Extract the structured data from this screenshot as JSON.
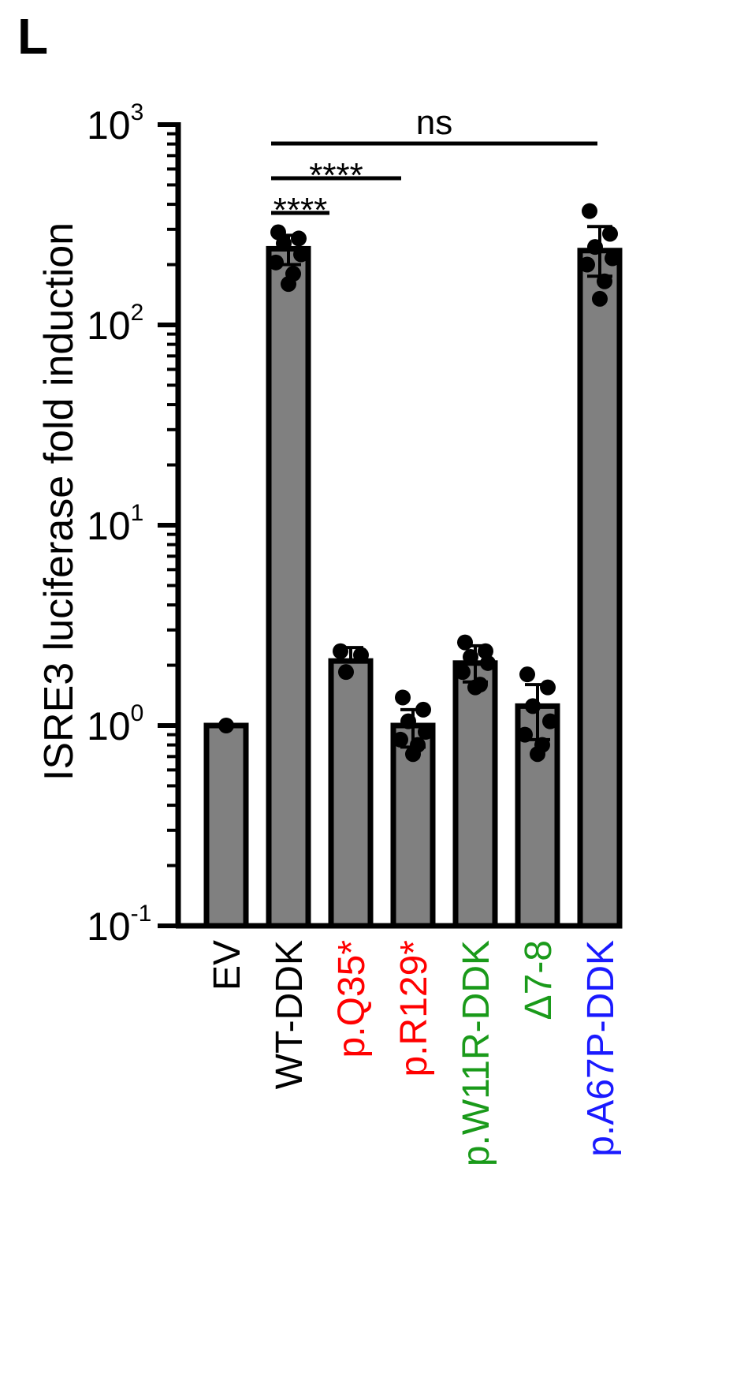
{
  "panel_label": "L",
  "colors": {
    "bar_fill": "#808080",
    "bar_stroke": "#000000",
    "point": "#000000",
    "label_black": "#000000",
    "label_red": "#ff0000",
    "label_green": "#1a9a1a",
    "label_blue": "#1a1aff"
  },
  "chart_data": {
    "type": "bar",
    "ylabel": "ISRE3 luciferase fold induction",
    "yscale": "log",
    "ylim": [
      0.1,
      1000
    ],
    "yticks": [
      {
        "base": "10",
        "exp": "3",
        "value": 1000
      },
      {
        "base": "10",
        "exp": "2",
        "value": 100
      },
      {
        "base": "10",
        "exp": "1",
        "value": 10
      },
      {
        "base": "10",
        "exp": "0",
        "value": 1
      },
      {
        "base": "10",
        "exp": "-1",
        "value": 0.1
      }
    ],
    "categories": [
      "EV",
      "WT-DDK",
      "p.Q35*",
      "p.R129*",
      "p.W11R-DDK",
      "Δ7-8",
      "p.A67P-DDK"
    ],
    "category_colors": [
      "label_black",
      "label_black",
      "label_red",
      "label_red",
      "label_green",
      "label_green",
      "label_blue"
    ],
    "values": [
      1.0,
      240,
      2.1,
      1.0,
      2.05,
      1.25,
      235
    ],
    "error_low": [
      null,
      200,
      2.1,
      0.78,
      1.65,
      0.85,
      175
    ],
    "error_high": [
      null,
      280,
      2.45,
      1.2,
      2.5,
      1.6,
      310
    ],
    "points": [
      [
        1.0
      ],
      [
        290,
        270,
        255,
        225,
        205,
        180,
        160
      ],
      [
        2.35,
        2.25,
        1.85
      ],
      [
        1.38,
        1.2,
        1.05,
        0.93,
        0.85,
        0.8,
        0.72
      ],
      [
        2.6,
        2.35,
        2.2,
        2.05,
        1.85,
        1.6,
        1.55
      ],
      [
        1.8,
        1.55,
        1.25,
        1.05,
        0.9,
        0.8,
        0.72
      ],
      [
        370,
        285,
        245,
        215,
        200,
        165,
        135
      ]
    ],
    "significance": [
      {
        "from": 1,
        "to": 6,
        "label": "ns"
      },
      {
        "from": 1,
        "to": 3,
        "label": "****"
      },
      {
        "from": 1,
        "to": 2,
        "label": "****"
      }
    ],
    "grid": false,
    "legend": "none"
  }
}
